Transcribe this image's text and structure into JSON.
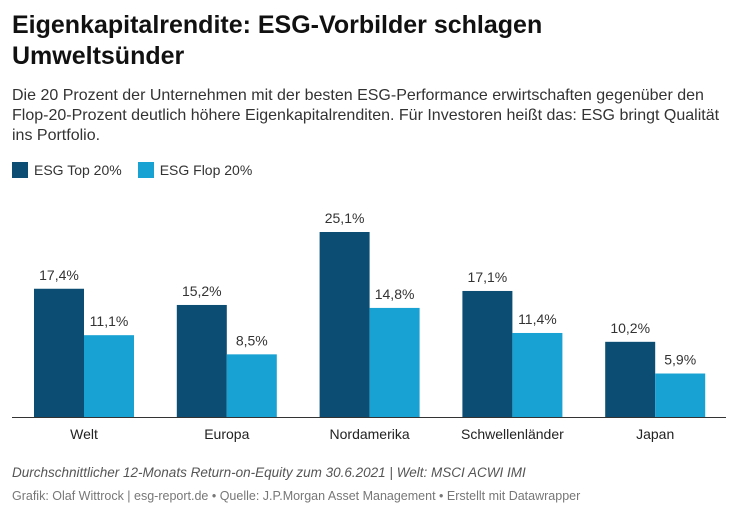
{
  "title": "Eigenkapitalrendite: ESG-Vorbilder schlagen Umweltsünder",
  "subtitle": "Die 20 Prozent der Unternehmen mit der besten ESG-Performance erwirtschaften gegenüber den Flop-20-Prozent deutlich höhere Eigenkapitalrenditen. Für Investoren heißt das: ESG bringt Qualität ins Portfolio.",
  "notes": "Durchschnittlicher 12-Monats Return-on-Equity zum 30.6.2021 | Welt: MSCI ACWI IMI",
  "footer": {
    "author": "Grafik: Olaf Wittrock | esg-report.de",
    "source": "Quelle: J.P.Morgan Asset Management",
    "tool": "Erstellt mit Datawrapper",
    "separator": " • "
  },
  "chart_data": {
    "type": "bar",
    "categories": [
      "Welt",
      "Europa",
      "Nordamerika",
      "Schwellenländer",
      "Japan"
    ],
    "series": [
      {
        "name": "ESG Top 20%",
        "color": "#0c4e73",
        "values": [
          17.4,
          15.2,
          25.1,
          17.1,
          10.2
        ],
        "labels": [
          "17,4%",
          "15,2%",
          "25,1%",
          "17,1%",
          "10,2%"
        ]
      },
      {
        "name": "ESG Flop 20%",
        "color": "#18a2d3",
        "values": [
          11.1,
          8.5,
          14.8,
          11.4,
          5.9
        ],
        "labels": [
          "11,1%",
          "8,5%",
          "14,8%",
          "11,4%",
          "5,9%"
        ]
      }
    ],
    "ylim": [
      0,
      25.1
    ],
    "xlabel": "",
    "ylabel": ""
  }
}
